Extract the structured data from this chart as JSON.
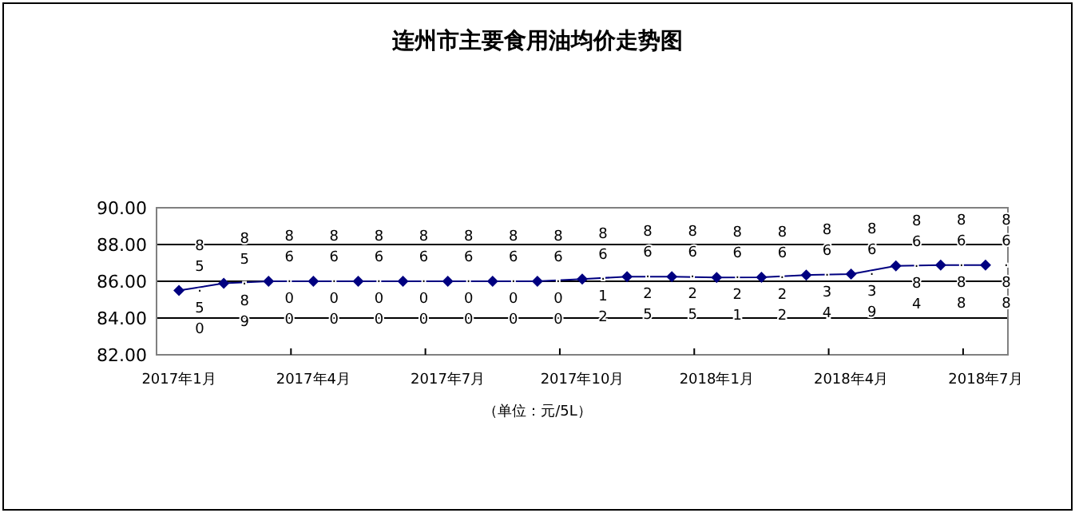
{
  "chart_data": {
    "type": "line",
    "title": "连州市主要食用油均价走势图",
    "categories": [
      "2017年1月",
      null,
      null,
      "2017年4月",
      null,
      null,
      "2017年7月",
      null,
      null,
      "2017年10月",
      null,
      null,
      "2018年1月",
      null,
      null,
      "2018年4月",
      null,
      null,
      "2018年7月"
    ],
    "series": [
      {
        "color": "#000080",
        "values": [
          85.5,
          85.89,
          86.0,
          86.0,
          86.0,
          86.0,
          86.0,
          86.0,
          86.0,
          86.12,
          86.25,
          86.25,
          86.21,
          86.22,
          86.34,
          86.39,
          86.84,
          86.88,
          86.88
        ],
        "value_labels": [
          "85.50",
          "85.89",
          "86.00",
          "86.00",
          "86.00",
          "86.00",
          "86.00",
          "86.00",
          "86.00",
          "86.12",
          "86.25",
          "86.25",
          "86.21",
          "86.22",
          "86.34",
          "86.39",
          "86.84",
          "86.88",
          "86.88"
        ]
      }
    ],
    "ylim": [
      82,
      90
    ],
    "yticks": [
      {
        "value": 82,
        "label": "82.00"
      },
      {
        "value": 84,
        "label": "84.00"
      },
      {
        "value": 86,
        "label": "86.00"
      },
      {
        "value": 88,
        "label": "88.00"
      },
      {
        "value": 90,
        "label": "90.00"
      }
    ],
    "grid": "y",
    "marker": "diamond",
    "annotations": [
      "（单位：元/5L）"
    ]
  }
}
